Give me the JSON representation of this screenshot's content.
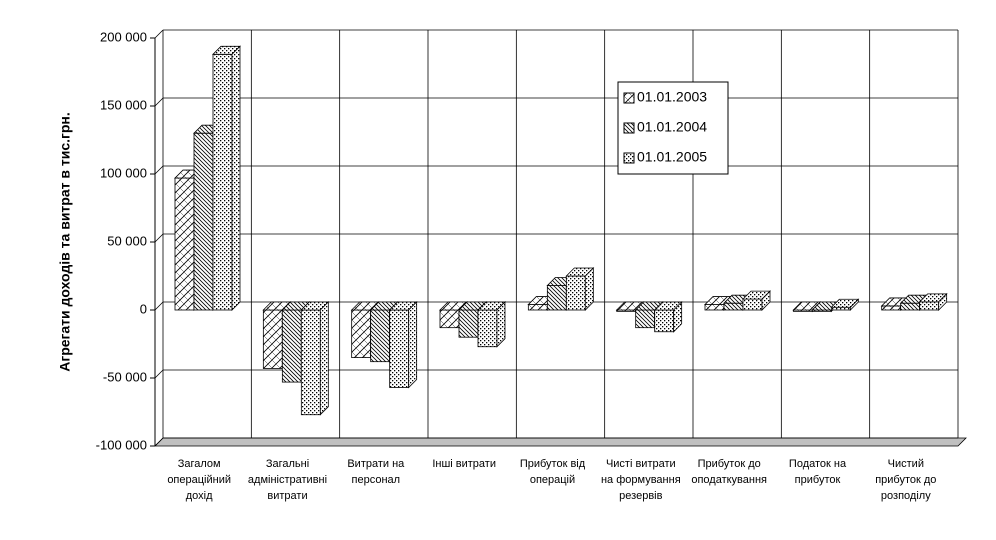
{
  "chart_data": {
    "type": "bar3d",
    "y_label": "Агрегати доходів та витрат в тис.грн.",
    "categories": [
      "Загалом операційний дохід",
      "Загальні адміністративні витрати",
      "Витрати на персонал",
      "Інші витрати",
      "Прибуток від операцій",
      "Чисті витрати на формування резервів",
      "Прибуток до оподаткування",
      "Податок на прибуток",
      "Чистий прибуток до розподілу"
    ],
    "series": [
      {
        "name": "01.01.2003",
        "color": "#000000",
        "values": [
          97000,
          -43000,
          -35000,
          -13000,
          4000,
          -1000,
          4000,
          -1000,
          3000
        ]
      },
      {
        "name": "01.01.2004",
        "color": "#000000",
        "values": [
          130000,
          -53000,
          -38000,
          -20000,
          18000,
          -13000,
          5000,
          -1000,
          5000
        ]
      },
      {
        "name": "01.01.2005",
        "color": "#000000",
        "values": [
          188000,
          -77000,
          -57000,
          -27000,
          25000,
          -16000,
          8000,
          2000,
          6000
        ]
      }
    ],
    "ylim": [
      -100000,
      200000
    ],
    "yticks": [
      {
        "value": -100000,
        "label": "-100 000"
      },
      {
        "value": -50000,
        "label": "-50 000"
      },
      0,
      {
        "value": 50000,
        "label": "50 000"
      },
      {
        "value": 100000,
        "label": "100 000"
      },
      {
        "value": 150000,
        "label": "150 000"
      },
      {
        "value": 200000,
        "label": "200 000"
      }
    ],
    "grid": true,
    "legend": "top-right"
  }
}
